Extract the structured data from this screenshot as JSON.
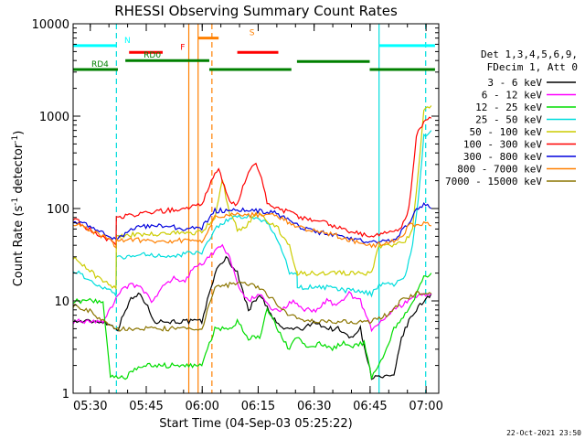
{
  "chart_data": {
    "type": "line",
    "title": "RHESSI Observing Summary Count Rates",
    "xlabel": "Start Time (04-Sep-03 05:25:22)",
    "ylabel": "Count Rate (s⁻¹ detector⁻¹)",
    "ylabel_main": "Count Rate (s",
    "ylabel_sup1": "-1",
    "ylabel_mid": " detector",
    "ylabel_sup2": "-1",
    "ylabel_end": ")",
    "yscale": "log",
    "ylim": [
      1,
      10000
    ],
    "xlim_minutes": [
      0,
      98
    ],
    "x_ticks": [
      {
        "label": "05:30",
        "minute": 4.6
      },
      {
        "label": "05:45",
        "minute": 19.6
      },
      {
        "label": "06:00",
        "minute": 34.6
      },
      {
        "label": "06:15",
        "minute": 49.6
      },
      {
        "label": "06:30",
        "minute": 64.6
      },
      {
        "label": "06:45",
        "minute": 79.6
      },
      {
        "label": "07:00",
        "minute": 94.6
      }
    ],
    "y_ticks": [
      {
        "label": "1",
        "value": 1
      },
      {
        "label": "10",
        "value": 10
      },
      {
        "label": "100",
        "value": 100
      },
      {
        "label": "1000",
        "value": 1000
      },
      {
        "label": "10000",
        "value": 10000
      }
    ],
    "legend_header": [
      "Det 1,3,4,5,6,9,",
      "FDecim 1, Att 0"
    ],
    "legend_position": "right",
    "series": [
      {
        "name": "3 - 6 keV",
        "color": "#000000",
        "x": [
          0,
          8,
          12,
          15,
          18,
          22,
          25,
          28,
          31,
          34.5,
          38,
          41,
          44,
          47,
          50,
          53,
          56,
          59,
          62,
          65,
          68,
          71,
          74,
          77,
          80,
          83,
          86,
          88,
          90,
          92,
          94,
          96
        ],
        "y": [
          6,
          6,
          5,
          10,
          12,
          6,
          6,
          6,
          6,
          6,
          20,
          30,
          20,
          8,
          12,
          7,
          5,
          5,
          5,
          6,
          5,
          5,
          4,
          5,
          1.5,
          1.5,
          1.5,
          4,
          6,
          8,
          10,
          12
        ]
      },
      {
        "name": "6 - 12 keV",
        "color": "#ff00ff",
        "x": [
          0,
          4,
          8,
          10,
          12,
          15,
          18,
          21,
          24,
          27,
          30,
          32,
          34.5,
          38,
          40,
          42,
          44,
          47,
          50,
          53,
          56,
          59,
          62,
          65,
          68,
          71,
          74,
          77,
          80,
          83,
          86,
          90,
          94,
          96
        ],
        "y": [
          6,
          6,
          6,
          8,
          12,
          15,
          14,
          10,
          14,
          18,
          16,
          22,
          25,
          35,
          40,
          30,
          15,
          10,
          12,
          8,
          8,
          10,
          8,
          8,
          10,
          9,
          12,
          10,
          5,
          6,
          8,
          10,
          12,
          12
        ]
      },
      {
        "name": "12 - 25 keV",
        "color": "#00dd00",
        "x": [
          0,
          8,
          10,
          14,
          18,
          22,
          26,
          30,
          34.5,
          38,
          42,
          44,
          47,
          50,
          52,
          54,
          56,
          58,
          60,
          63,
          66,
          69,
          72,
          75,
          78,
          80,
          84,
          86,
          90,
          94,
          96
        ],
        "y": [
          10,
          10,
          1.5,
          1.5,
          2,
          2,
          2,
          2,
          2,
          5,
          5,
          6,
          4,
          4,
          8,
          6,
          4,
          3,
          4,
          3,
          3.5,
          3,
          3.5,
          3.3,
          3.5,
          1.5,
          3,
          5,
          8,
          18,
          20
        ]
      },
      {
        "name": "25 - 50 keV",
        "color": "#00dddd",
        "x": [
          0,
          3,
          6,
          9,
          11.5,
          11.6,
          15,
          19,
          23,
          27,
          30,
          32,
          34.5,
          38,
          40,
          43,
          46,
          49,
          52,
          55,
          58,
          60,
          60.1,
          63,
          67,
          70,
          73,
          76,
          80,
          82,
          86,
          89,
          91,
          93,
          94,
          96
        ],
        "y": [
          22,
          18,
          15,
          13,
          12,
          30,
          30,
          32,
          31,
          30,
          33,
          33,
          34,
          60,
          70,
          80,
          82,
          80,
          70,
          45,
          20,
          20,
          14,
          14,
          14,
          14,
          13,
          13,
          12,
          15,
          15,
          18,
          40,
          200,
          600,
          700
        ]
      },
      {
        "name": "50 - 100 keV",
        "color": "#cccc00",
        "x": [
          0,
          4,
          8,
          11.5,
          11.6,
          15,
          20,
          25,
          30,
          34.5,
          38,
          40,
          42,
          44,
          46,
          48,
          50,
          52,
          55,
          58,
          60,
          60.1,
          64,
          68,
          72,
          76,
          80,
          82,
          86,
          89,
          91,
          93,
          94,
          96
        ],
        "y": [
          30,
          22,
          16,
          14,
          50,
          52,
          52,
          54,
          54,
          56,
          80,
          200,
          90,
          60,
          60,
          80,
          90,
          75,
          60,
          40,
          20,
          20,
          20,
          20,
          20,
          20,
          20,
          40,
          40,
          44,
          60,
          400,
          1200,
          1300
        ]
      },
      {
        "name": "100 - 300 keV",
        "color": "#ff0000",
        "x": [
          0,
          4,
          8,
          11.5,
          11.6,
          15,
          20,
          25,
          30,
          34.5,
          38,
          39,
          40,
          42,
          44,
          46,
          48,
          49,
          50,
          52,
          55,
          58,
          61,
          64,
          68,
          72,
          76,
          80,
          84,
          88,
          90,
          92,
          94,
          96
        ],
        "y": [
          80,
          60,
          50,
          40,
          80,
          85,
          90,
          95,
          100,
          110,
          250,
          260,
          200,
          120,
          110,
          200,
          280,
          300,
          250,
          120,
          100,
          90,
          80,
          75,
          70,
          60,
          55,
          50,
          55,
          60,
          100,
          600,
          900,
          950
        ]
      },
      {
        "name": "300 - 800 keV",
        "color": "#0000dd",
        "x": [
          0,
          4,
          8,
          11.5,
          15,
          20,
          25,
          30,
          34.5,
          38,
          42,
          46,
          50,
          54,
          58,
          62,
          66,
          70,
          74,
          78,
          82,
          86,
          90,
          92,
          94,
          96
        ],
        "y": [
          75,
          65,
          55,
          45,
          60,
          65,
          65,
          60,
          62,
          95,
          95,
          95,
          95,
          90,
          75,
          60,
          55,
          52,
          48,
          45,
          45,
          46,
          70,
          100,
          110,
          100
        ]
      },
      {
        "name": "800 - 7000 keV",
        "color": "#ff8000",
        "x": [
          0,
          4,
          8,
          11.5,
          11.6,
          15,
          20,
          25,
          30,
          34.5,
          38,
          42,
          46,
          50,
          54,
          58,
          62,
          66,
          70,
          74,
          78,
          80,
          84,
          88,
          90,
          92,
          94,
          96
        ],
        "y": [
          70,
          60,
          50,
          40,
          45,
          46,
          45,
          43,
          46,
          45,
          80,
          85,
          85,
          85,
          85,
          70,
          60,
          55,
          52,
          46,
          42,
          40,
          42,
          48,
          65,
          68,
          70,
          65
        ]
      },
      {
        "name": "7000 - 15000 keV",
        "color": "#8b7500",
        "x": [
          0,
          4,
          8,
          12,
          16,
          20,
          24,
          28,
          32,
          34.5,
          38,
          42,
          46,
          50,
          54,
          58,
          62,
          66,
          70,
          74,
          78,
          80,
          84,
          88,
          92,
          96
        ],
        "y": [
          9,
          8,
          6,
          5,
          5,
          5,
          5,
          5,
          5,
          5,
          14,
          15,
          16,
          14,
          10,
          7,
          6,
          6,
          6,
          6,
          6,
          6,
          7,
          10,
          12,
          12
        ]
      }
    ],
    "vertical_markers": [
      {
        "minute": 11.6,
        "color": "#00dddd",
        "style": "dashed"
      },
      {
        "minute": 31.0,
        "color": "#ff8000",
        "style": "solid"
      },
      {
        "minute": 33.5,
        "color": "#ff8000",
        "style": "solid"
      },
      {
        "minute": 37.2,
        "color": "#ff8000",
        "style": "dashed"
      },
      {
        "minute": 82.0,
        "color": "#00dddd",
        "style": "solid"
      },
      {
        "minute": 94.5,
        "color": "#00dddd",
        "style": "dashed"
      }
    ],
    "flag_bars": [
      {
        "label": "N",
        "color": "#00ffff",
        "value": 5800,
        "segments": [
          [
            0,
            11.6
          ],
          [
            82,
            97
          ]
        ]
      },
      {
        "label": "S",
        "color": "#ff8000",
        "value": 7000,
        "segments": [
          [
            33.5,
            39
          ]
        ]
      },
      {
        "label": "F",
        "color": "#ff0000",
        "value": 4900,
        "segments": [
          [
            15,
            24
          ],
          [
            44,
            55
          ]
        ]
      },
      {
        "label": "RD0",
        "color": "#008000",
        "value": 4000,
        "segments": [
          [
            14,
            36.5
          ]
        ]
      },
      {
        "label": "RD4",
        "color": "#008000",
        "value": 3200,
        "segments": [
          [
            0,
            12
          ],
          [
            36.5,
            58.5
          ],
          [
            79.5,
            97
          ]
        ]
      },
      {
        "label": "",
        "color": "#008000",
        "value": 3900,
        "segments": [
          [
            60,
            79.5
          ]
        ]
      }
    ],
    "annotation": "22-Oct-2021 23:50"
  }
}
